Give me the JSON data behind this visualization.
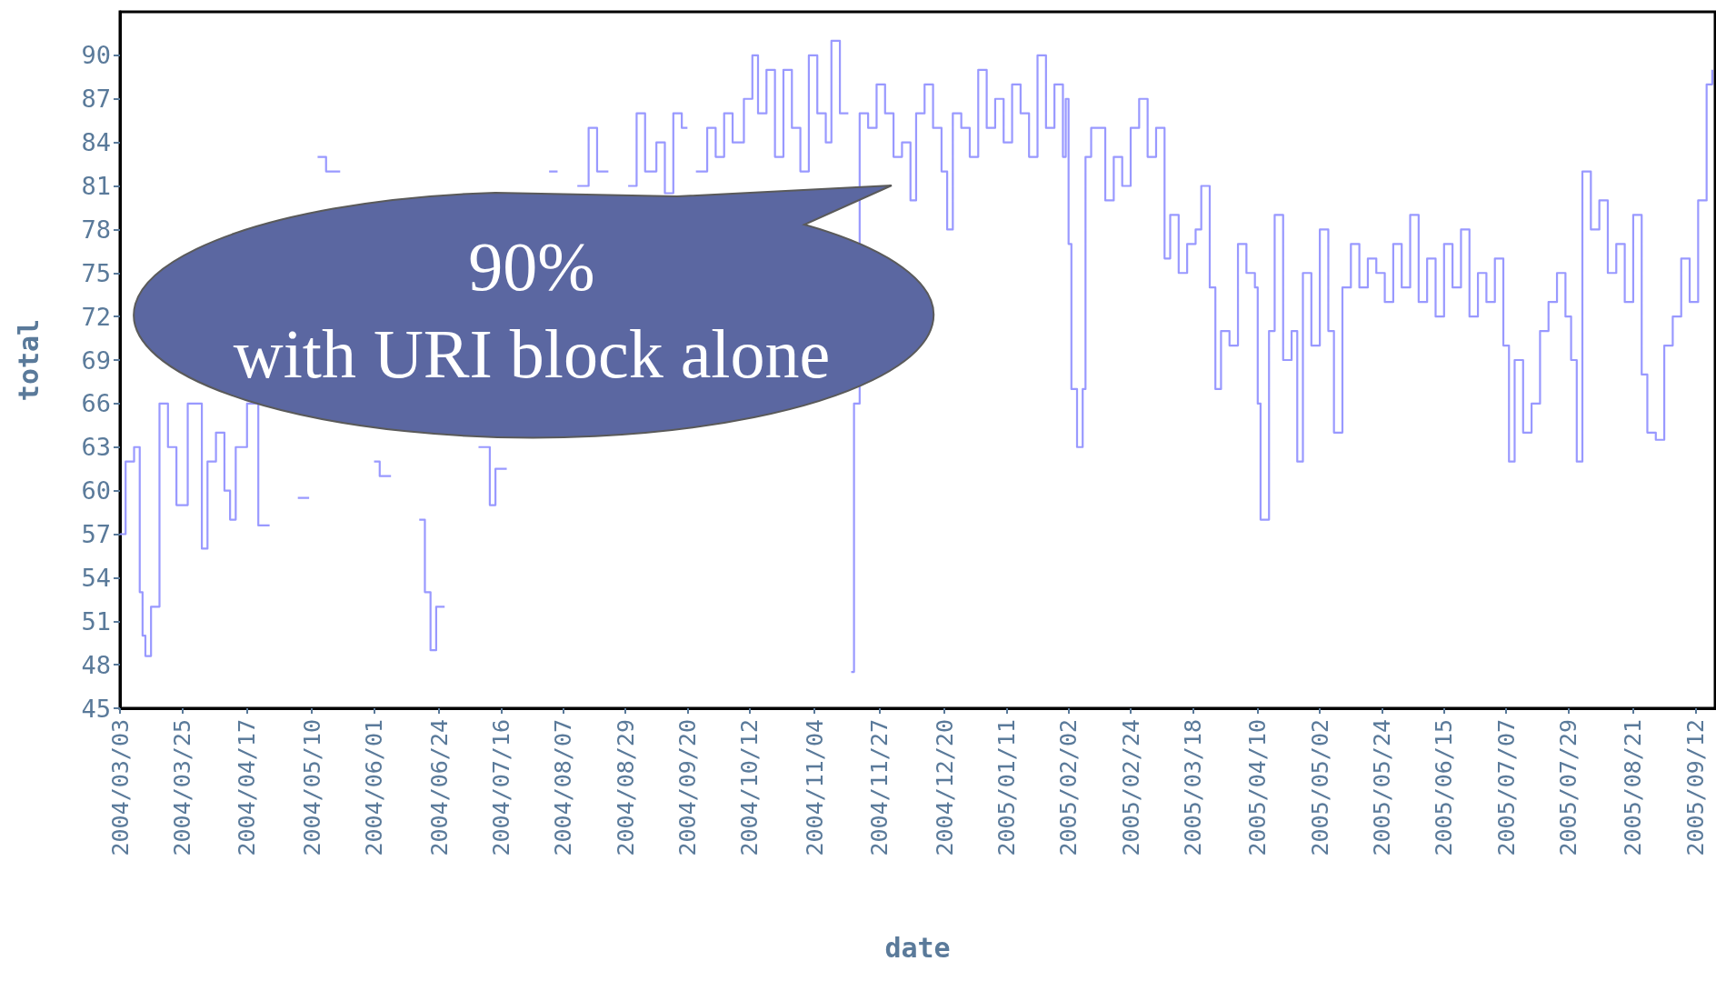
{
  "chart_data": {
    "type": "step",
    "xlabel": "date",
    "ylabel": "total",
    "annotations": [
      "90%\nwith URI block alone"
    ],
    "xlim": [
      "2004-03-03",
      "2005-09-19"
    ],
    "ylim": [
      45,
      93
    ],
    "xticks": [
      {
        "value": "2004-03-03",
        "label": "2004/03/03"
      },
      {
        "value": "2004-03-25",
        "label": "2004/03/25"
      },
      {
        "value": "2004-04-17",
        "label": "2004/04/17"
      },
      {
        "value": "2004-05-10",
        "label": "2004/05/10"
      },
      {
        "value": "2004-06-01",
        "label": "2004/06/01"
      },
      {
        "value": "2004-06-24",
        "label": "2004/06/24"
      },
      {
        "value": "2004-07-16",
        "label": "2004/07/16"
      },
      {
        "value": "2004-08-07",
        "label": "2004/08/07"
      },
      {
        "value": "2004-08-29",
        "label": "2004/08/29"
      },
      {
        "value": "2004-09-20",
        "label": "2004/09/20"
      },
      {
        "value": "2004-10-12",
        "label": "2004/10/12"
      },
      {
        "value": "2004-11-04",
        "label": "2004/11/04"
      },
      {
        "value": "2004-11-27",
        "label": "2004/11/27"
      },
      {
        "value": "2004-12-20",
        "label": "2004/12/20"
      },
      {
        "value": "2005-01-11",
        "label": "2005/01/11"
      },
      {
        "value": "2005-02-02",
        "label": "2005/02/02"
      },
      {
        "value": "2005-02-24",
        "label": "2005/02/24"
      },
      {
        "value": "2005-03-18",
        "label": "2005/03/18"
      },
      {
        "value": "2005-04-10",
        "label": "2005/04/10"
      },
      {
        "value": "2005-05-02",
        "label": "2005/05/02"
      },
      {
        "value": "2005-05-24",
        "label": "2005/05/24"
      },
      {
        "value": "2005-06-15",
        "label": "2005/06/15"
      },
      {
        "value": "2005-07-07",
        "label": "2005/07/07"
      },
      {
        "value": "2005-07-29",
        "label": "2005/07/29"
      },
      {
        "value": "2005-08-21",
        "label": "2005/08/21"
      },
      {
        "value": "2005-09-12",
        "label": "2005/09/12"
      }
    ],
    "yticks": [
      45,
      48,
      51,
      54,
      57,
      60,
      63,
      66,
      69,
      72,
      75,
      78,
      81,
      84,
      87,
      90
    ],
    "grid": false,
    "marker": "none",
    "line_style": "solid",
    "x": [
      "2004-03-03",
      "2004-03-05",
      "2004-03-08",
      "2004-03-10",
      "2004-03-11",
      "2004-03-12",
      "2004-03-14",
      "2004-03-17",
      "2004-03-20",
      "2004-03-23",
      "2004-03-27",
      "2004-04-01",
      "2004-04-03",
      "2004-04-06",
      "2004-04-09",
      "2004-04-11",
      "2004-04-13",
      "2004-04-17",
      "2004-04-21",
      "2004-04-25",
      "2004-05-01",
      "2004-05-05",
      "2004-05-09",
      "2004-05-12",
      "2004-05-15",
      "2004-05-20",
      "2004-05-27",
      "2004-06-01",
      "2004-06-03",
      "2004-06-07",
      "2004-06-12",
      "2004-06-17",
      "2004-06-19",
      "2004-06-21",
      "2004-06-23",
      "2004-06-26",
      "2004-06-30",
      "2004-07-04",
      "2004-07-08",
      "2004-07-12",
      "2004-07-14",
      "2004-07-18",
      "2004-07-22",
      "2004-07-26",
      "2004-07-30",
      "2004-08-02",
      "2004-08-05",
      "2004-08-09",
      "2004-08-12",
      "2004-08-16",
      "2004-08-19",
      "2004-08-23",
      "2004-08-27",
      "2004-08-30",
      "2004-09-02",
      "2004-09-05",
      "2004-09-09",
      "2004-09-12",
      "2004-09-15",
      "2004-09-18",
      "2004-09-20",
      "2004-09-23",
      "2004-09-27",
      "2004-09-30",
      "2004-10-03",
      "2004-10-06",
      "2004-10-10",
      "2004-10-13",
      "2004-10-15",
      "2004-10-18",
      "2004-10-21",
      "2004-10-24",
      "2004-10-27",
      "2004-10-30",
      "2004-11-02",
      "2004-11-05",
      "2004-11-08",
      "2004-11-10",
      "2004-11-13",
      "2004-11-16",
      "2004-11-17",
      "2004-11-18",
      "2004-11-20",
      "2004-11-23",
      "2004-11-26",
      "2004-11-29",
      "2004-12-02",
      "2004-12-05",
      "2004-12-08",
      "2004-12-10",
      "2004-12-13",
      "2004-12-16",
      "2004-12-19",
      "2004-12-21",
      "2004-12-23",
      "2004-12-26",
      "2004-12-29",
      "2005-01-01",
      "2005-01-04",
      "2005-01-07",
      "2005-01-10",
      "2005-01-13",
      "2005-01-16",
      "2005-01-19",
      "2005-01-22",
      "2005-01-25",
      "2005-01-28",
      "2005-01-31",
      "2005-02-01",
      "2005-02-02",
      "2005-02-03",
      "2005-02-05",
      "2005-02-07",
      "2005-02-08",
      "2005-02-10",
      "2005-02-12",
      "2005-02-15",
      "2005-02-18",
      "2005-02-21",
      "2005-02-24",
      "2005-02-27",
      "2005-03-02",
      "2005-03-05",
      "2005-03-08",
      "2005-03-10",
      "2005-03-13",
      "2005-03-16",
      "2005-03-19",
      "2005-03-21",
      "2005-03-24",
      "2005-03-26",
      "2005-03-28",
      "2005-03-31",
      "2005-04-03",
      "2005-04-06",
      "2005-04-09",
      "2005-04-10",
      "2005-04-11",
      "2005-04-14",
      "2005-04-16",
      "2005-04-19",
      "2005-04-22",
      "2005-04-24",
      "2005-04-26",
      "2005-04-29",
      "2005-05-02",
      "2005-05-05",
      "2005-05-07",
      "2005-05-10",
      "2005-05-13",
      "2005-05-16",
      "2005-05-19",
      "2005-05-22",
      "2005-05-25",
      "2005-05-28",
      "2005-05-31",
      "2005-06-03",
      "2005-06-06",
      "2005-06-09",
      "2005-06-12",
      "2005-06-15",
      "2005-06-18",
      "2005-06-21",
      "2005-06-24",
      "2005-06-27",
      "2005-06-30",
      "2005-07-03",
      "2005-07-06",
      "2005-07-08",
      "2005-07-10",
      "2005-07-13",
      "2005-07-16",
      "2005-07-19",
      "2005-07-22",
      "2005-07-25",
      "2005-07-28",
      "2005-07-30",
      "2005-08-01",
      "2005-08-03",
      "2005-08-06",
      "2005-08-09",
      "2005-08-12",
      "2005-08-15",
      "2005-08-18",
      "2005-08-21",
      "2005-08-24",
      "2005-08-26",
      "2005-08-29",
      "2005-09-01",
      "2005-09-04",
      "2005-09-07",
      "2005-09-10",
      "2005-09-13",
      "2005-09-16",
      "2005-09-18"
    ],
    "series": [
      {
        "color": "#9999ff",
        "values": [
          57,
          62,
          63,
          53,
          50,
          48.6,
          52,
          66,
          63,
          59,
          66,
          56,
          62,
          64,
          60,
          58,
          63,
          66,
          57.6,
          null,
          null,
          59.5,
          null,
          83,
          82,
          null,
          null,
          62,
          61,
          null,
          null,
          58,
          53,
          49,
          52,
          null,
          null,
          null,
          63,
          59,
          61.5,
          null,
          null,
          null,
          null,
          82,
          null,
          null,
          81,
          85,
          82,
          null,
          null,
          81,
          86,
          82,
          84,
          80.5,
          86,
          85,
          null,
          82,
          85,
          83,
          86,
          84,
          87,
          90,
          86,
          89,
          83,
          89,
          85,
          82,
          90,
          86,
          84,
          91,
          86,
          null,
          47.5,
          66,
          86,
          85,
          88,
          86,
          83,
          84,
          80,
          86,
          88,
          85,
          82,
          78,
          86,
          85,
          83,
          89,
          85,
          87,
          84,
          88,
          86,
          83,
          90,
          85,
          88,
          83,
          87,
          77,
          67,
          63,
          67,
          83,
          85,
          85,
          80,
          83,
          81,
          85,
          87,
          83,
          85,
          76,
          79,
          75,
          77,
          78,
          81,
          74,
          67,
          71,
          70,
          77,
          75,
          74,
          66,
          58,
          71,
          79,
          69,
          71,
          62,
          75,
          70,
          78,
          71,
          64,
          74,
          77,
          74,
          76,
          75,
          73,
          77,
          74,
          79,
          73,
          76,
          72,
          77,
          74,
          78,
          72,
          75,
          73,
          76,
          70,
          62,
          69,
          64,
          66,
          71,
          73,
          75,
          72,
          69,
          62,
          82,
          78,
          80,
          75,
          77,
          73,
          79,
          68,
          64,
          63.5,
          70,
          72,
          76,
          73,
          80,
          88,
          89
        ]
      }
    ]
  }
}
